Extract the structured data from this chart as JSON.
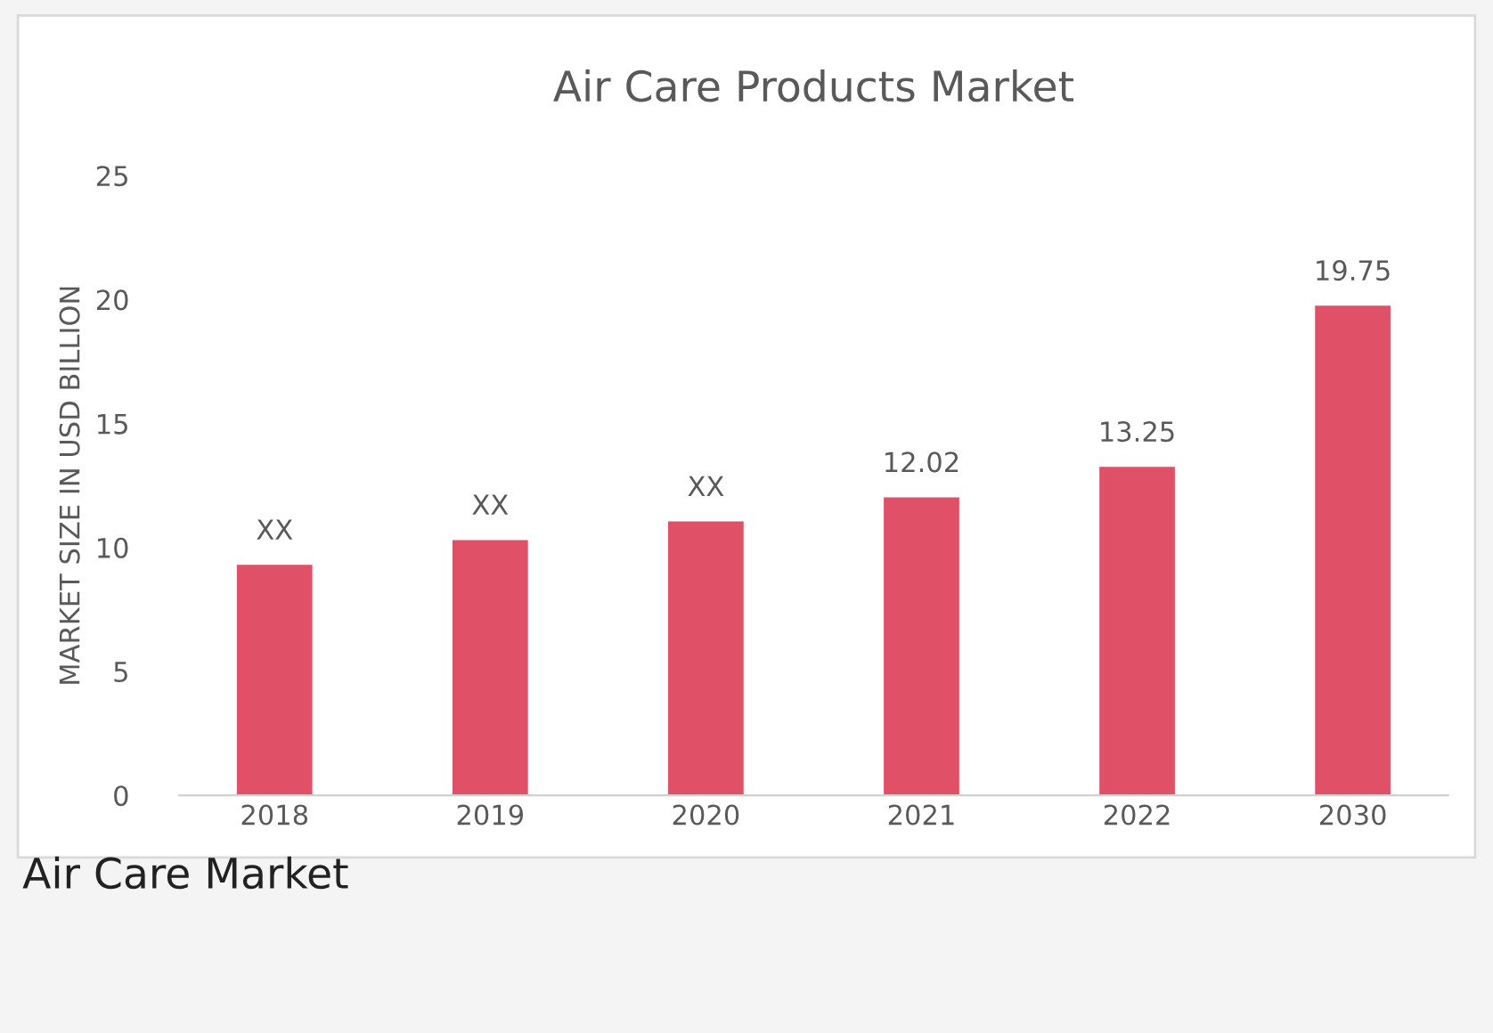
{
  "chart_data": {
    "type": "bar",
    "title": "Air Care Products Market",
    "ylabel": "MARKET SIZE IN USD BILLION",
    "categories": [
      "2018",
      "2019",
      "2020",
      "2021",
      "2022",
      "2030"
    ],
    "values": [
      9.3,
      10.3,
      11.05,
      12.02,
      13.25,
      19.75
    ],
    "value_labels": [
      "XX",
      "XX",
      "XX",
      "12.02",
      "13.25",
      "19.75"
    ],
    "color": "#e05067",
    "ylim": [
      0,
      25
    ],
    "yticks": [
      0,
      5,
      10,
      15,
      20,
      25
    ],
    "grid": false,
    "annotations": [
      "Air Care Market"
    ]
  }
}
